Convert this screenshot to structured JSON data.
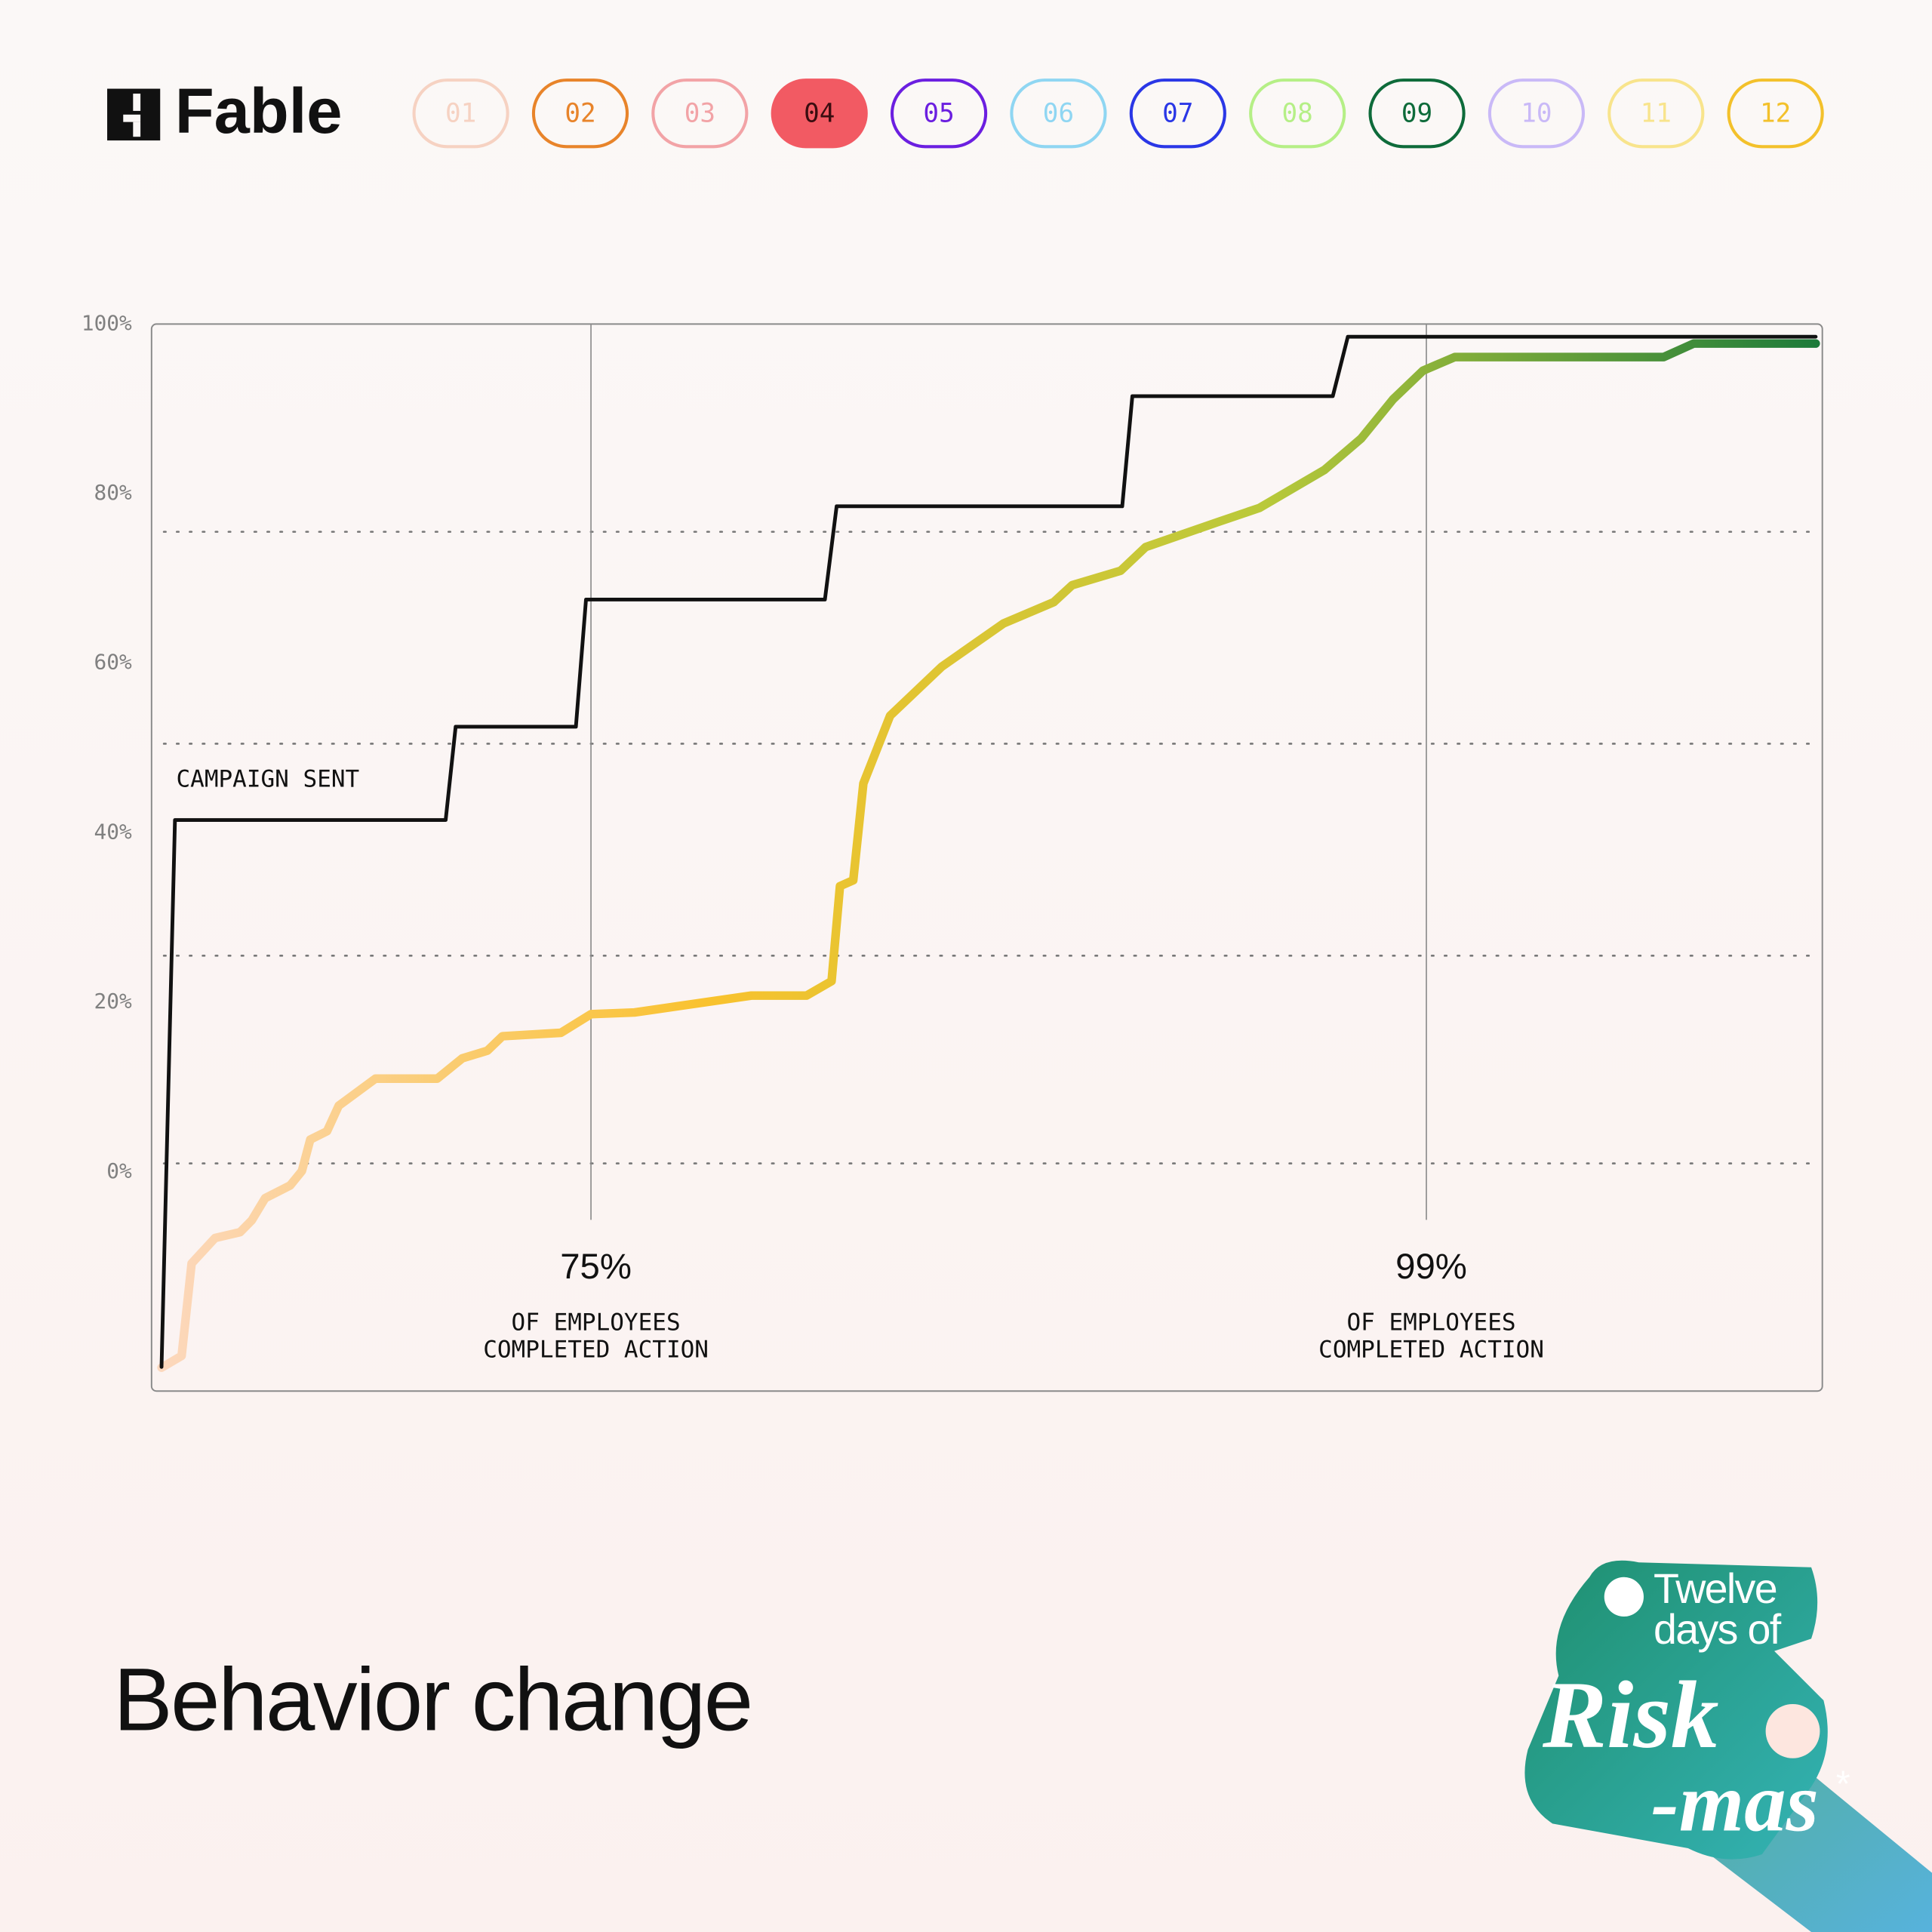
{
  "header": {
    "logo": "Fable",
    "active_index": 3,
    "days": [
      {
        "label": "01",
        "color": "#f6d2c2"
      },
      {
        "label": "02",
        "color": "#e8842a"
      },
      {
        "label": "03",
        "color": "#f2a3a6"
      },
      {
        "label": "04",
        "color": "#f25a63"
      },
      {
        "label": "05",
        "color": "#6b1fe0"
      },
      {
        "label": "06",
        "color": "#8fd6f2"
      },
      {
        "label": "07",
        "color": "#2a37e6"
      },
      {
        "label": "08",
        "color": "#b5ef86"
      },
      {
        "label": "09",
        "color": "#0e6b3a"
      },
      {
        "label": "10",
        "color": "#c9b9f7"
      },
      {
        "label": "11",
        "color": "#f8e48c"
      },
      {
        "label": "12",
        "color": "#f3c12b"
      }
    ]
  },
  "chart_data": {
    "type": "line",
    "xlim": [
      0,
      100
    ],
    "ylim": [
      -26,
      100
    ],
    "yticks": [
      {
        "value": 0,
        "label": "0%"
      },
      {
        "value": 20,
        "label": "20%"
      },
      {
        "value": 40,
        "label": "40%"
      },
      {
        "value": 60,
        "label": "60%"
      },
      {
        "value": 80,
        "label": "80%"
      },
      {
        "value": 100,
        "label": "100%"
      }
    ],
    "grid_values": [
      1,
      25.5,
      50.5,
      75.5
    ],
    "series": [
      {
        "name": "CAMPAIGN SENT",
        "color": "#111111",
        "x": [
          0.6,
          1.4,
          17.6,
          18.2,
          25.4,
          26,
          40.3,
          41,
          58.1,
          58.7,
          70.7,
          71.6,
          99.6
        ],
        "values": [
          -23,
          41.5,
          41.5,
          52.5,
          52.5,
          67.5,
          67.5,
          78.5,
          78.5,
          91.5,
          91.5,
          98.5,
          98.5
        ]
      },
      {
        "gradient": [
          "#fcd8c0",
          "#f9c22e",
          "#b9c93a",
          "#1b7a3a"
        ],
        "x": [
          0.6,
          1.8,
          2.4,
          3.8,
          5.3,
          6.0,
          6.8,
          8.3,
          9.0,
          9.5,
          10.5,
          11.2,
          13.4,
          17.1,
          18.6,
          20.1,
          21.0,
          24.5,
          26.3,
          28.9,
          35.9,
          39.2,
          40.7,
          41.2,
          42.0,
          42.6,
          44.2,
          47.3,
          51.0,
          54.0,
          55.1,
          58.0,
          59.5,
          63.9,
          66.3,
          70.2,
          72.4,
          74.3,
          76.1,
          78.0,
          90.5,
          92.3,
          99.6
        ],
        "values": [
          -23.1,
          -21.7,
          -10.8,
          -7.8,
          -7.1,
          -5.7,
          -3.1,
          -1.6,
          0.1,
          3.8,
          4.8,
          7.8,
          11.0,
          11.0,
          13.4,
          14.3,
          16.0,
          16.4,
          18.6,
          18.8,
          20.8,
          20.8,
          22.5,
          33.7,
          34.4,
          45.8,
          53.8,
          59.6,
          64.7,
          67.2,
          69.2,
          70.9,
          73.7,
          76.7,
          78.3,
          82.8,
          86.5,
          91.1,
          94.5,
          96.1,
          96.1,
          97.7,
          97.7
        ]
      }
    ],
    "annotations": [
      {
        "x": 26.3,
        "label": "75%",
        "text": [
          "OF EMPLOYEES",
          "COMPLETED ACTION"
        ]
      },
      {
        "x": 76.3,
        "label": "99%",
        "text": [
          "OF EMPLOYEES",
          "COMPLETED ACTION"
        ]
      }
    ]
  },
  "footer": {
    "title": "Behavior change"
  },
  "badge": {
    "line1": "Twelve",
    "line2": "days of",
    "line3": "Risk",
    "line4": "-mas",
    "mark": "*"
  }
}
